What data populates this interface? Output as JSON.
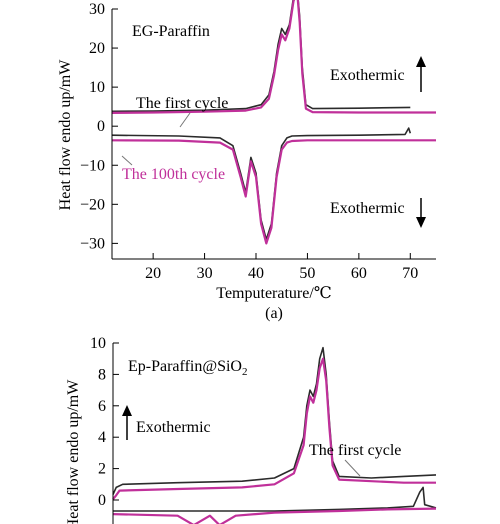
{
  "colors": {
    "first_cycle": "#2b2b2b",
    "hundredth_cycle": "#c0309a",
    "axis": "#000000",
    "background": "#ffffff"
  },
  "chart_data": [
    {
      "type": "line",
      "panel_label": "(a)",
      "sample_label": "EG-Paraffin",
      "xlabel": "Temputerature/℃",
      "ylabel": "Heat flow endo up/mW",
      "xlim": [
        12,
        75
      ],
      "ylim": [
        -34,
        30
      ],
      "xticks": [
        20,
        30,
        40,
        50,
        60,
        70
      ],
      "yticks": [
        30,
        20,
        10,
        0,
        -10,
        -20,
        -30
      ],
      "ytick_labels": [
        "30",
        "20",
        "10",
        "0",
        "−10",
        "−20",
        "−30"
      ],
      "annotations": {
        "first_cycle": "The first cycle",
        "hundredth_cycle": "The 100th cycle",
        "exo_up": "Exothermic",
        "exo_down": "Exothermic"
      },
      "series": [
        {
          "name": "The first cycle (heating)",
          "color_key": "first_cycle",
          "x": [
            12,
            20,
            30,
            38,
            41,
            42.5,
            43.5,
            44.3,
            45,
            45.7,
            46.5,
            47.3,
            48,
            48.5,
            49,
            49.7,
            51,
            60,
            70
          ],
          "y": [
            3.8,
            3.9,
            4.1,
            4.5,
            5.5,
            8,
            14,
            21,
            25,
            23.5,
            26,
            33,
            35.5,
            28,
            15,
            5.5,
            4.5,
            4.6,
            4.8
          ]
        },
        {
          "name": "The 100th cycle (heating)",
          "color_key": "hundredth_cycle",
          "x": [
            12,
            20,
            30,
            38,
            41,
            42.5,
            43.5,
            44.3,
            45,
            45.7,
            46.5,
            47.3,
            48,
            48.5,
            49,
            49.7,
            51,
            60,
            70,
            75
          ],
          "y": [
            3.4,
            3.5,
            3.7,
            4,
            4.8,
            7,
            13,
            19.5,
            23.5,
            22,
            25,
            32,
            34.5,
            26.5,
            13.5,
            4.5,
            3.6,
            3.5,
            3.5,
            3.5
          ]
        },
        {
          "name": "The first cycle (cooling)",
          "color_key": "first_cycle",
          "x": [
            12,
            25,
            33,
            35.5,
            37,
            38,
            39,
            40,
            41,
            42,
            43,
            44,
            45,
            46,
            47,
            50,
            60,
            69,
            69.7,
            70
          ],
          "y": [
            -2.3,
            -2.5,
            -3,
            -5,
            -12,
            -17,
            -8,
            -12,
            -24,
            -29,
            -25,
            -12,
            -5,
            -3,
            -2.5,
            -2.4,
            -2.3,
            -2.1,
            -0.5,
            -1.8
          ]
        },
        {
          "name": "The 100th cycle (cooling)",
          "color_key": "hundredth_cycle",
          "x": [
            12,
            25,
            33,
            35.5,
            37,
            38,
            39,
            40,
            41,
            42,
            43,
            44,
            45,
            46,
            47,
            50,
            60,
            70,
            75
          ],
          "y": [
            -3.6,
            -3.7,
            -4.2,
            -6,
            -13,
            -18,
            -9,
            -13,
            -25,
            -30,
            -26,
            -13,
            -6,
            -4.2,
            -3.8,
            -3.6,
            -3.6,
            -3.6,
            -3.6
          ]
        }
      ]
    },
    {
      "type": "line",
      "sample_label": "Ep-Paraffin@SiO",
      "sample_label_sub": "2",
      "ylabel": "Heat flow endo up/mW",
      "ylim": [
        -1.3,
        10
      ],
      "yticks": [
        10,
        8,
        6,
        4,
        2,
        0
      ],
      "annotations": {
        "exo_up": "Exothermic",
        "first_cycle": "The first cycle"
      },
      "series": [
        {
          "name": "The first cycle (heating)",
          "color_key": "first_cycle",
          "points": [
            [
              0,
              0.35
            ],
            [
              0.01,
              0.8
            ],
            [
              0.03,
              1.0
            ],
            [
              0.2,
              1.1
            ],
            [
              0.4,
              1.2
            ],
            [
              0.5,
              1.4
            ],
            [
              0.56,
              2.0
            ],
            [
              0.59,
              4.0
            ],
            [
              0.6,
              6.0
            ],
            [
              0.61,
              7.0
            ],
            [
              0.62,
              6.6
            ],
            [
              0.63,
              7.4
            ],
            [
              0.64,
              9.0
            ],
            [
              0.65,
              9.7
            ],
            [
              0.66,
              8.0
            ],
            [
              0.67,
              5.0
            ],
            [
              0.68,
              2.5
            ],
            [
              0.7,
              1.5
            ],
            [
              0.8,
              1.4
            ],
            [
              0.9,
              1.5
            ],
            [
              1.0,
              1.6
            ]
          ]
        },
        {
          "name": "The 100th cycle (heating)",
          "color_key": "hundredth_cycle",
          "points": [
            [
              0,
              0.05
            ],
            [
              0.01,
              0.3
            ],
            [
              0.02,
              0.6
            ],
            [
              0.2,
              0.7
            ],
            [
              0.4,
              0.8
            ],
            [
              0.5,
              1.0
            ],
            [
              0.56,
              1.7
            ],
            [
              0.59,
              3.5
            ],
            [
              0.6,
              5.5
            ],
            [
              0.61,
              6.6
            ],
            [
              0.62,
              6.2
            ],
            [
              0.63,
              7.0
            ],
            [
              0.64,
              8.4
            ],
            [
              0.65,
              9.0
            ],
            [
              0.66,
              7.6
            ],
            [
              0.67,
              4.6
            ],
            [
              0.68,
              2.2
            ],
            [
              0.7,
              1.3
            ],
            [
              0.8,
              1.2
            ],
            [
              0.9,
              1.1
            ],
            [
              1.0,
              1.1
            ],
            [
              1.05,
              1.1
            ]
          ]
        },
        {
          "name": "The first cycle (cooling)",
          "color_key": "first_cycle",
          "points": [
            [
              0,
              -0.7
            ],
            [
              0.3,
              -0.7
            ],
            [
              0.5,
              -0.7
            ],
            [
              0.7,
              -0.6
            ],
            [
              0.85,
              -0.5
            ],
            [
              0.93,
              -0.4
            ],
            [
              0.95,
              0.5
            ],
            [
              0.96,
              0.8
            ],
            [
              0.965,
              -0.3
            ],
            [
              1.0,
              -0.5
            ]
          ]
        },
        {
          "name": "The 100th cycle (cooling)",
          "color_key": "hundredth_cycle",
          "points": [
            [
              0,
              -0.9
            ],
            [
              0.2,
              -1.0
            ],
            [
              0.25,
              -1.6
            ],
            [
              0.3,
              -1.0
            ],
            [
              0.33,
              -1.6
            ],
            [
              0.38,
              -1.0
            ],
            [
              0.5,
              -0.8
            ],
            [
              0.7,
              -0.7
            ],
            [
              0.85,
              -0.6
            ],
            [
              1.0,
              -0.55
            ],
            [
              1.05,
              -0.55
            ]
          ]
        }
      ]
    }
  ]
}
